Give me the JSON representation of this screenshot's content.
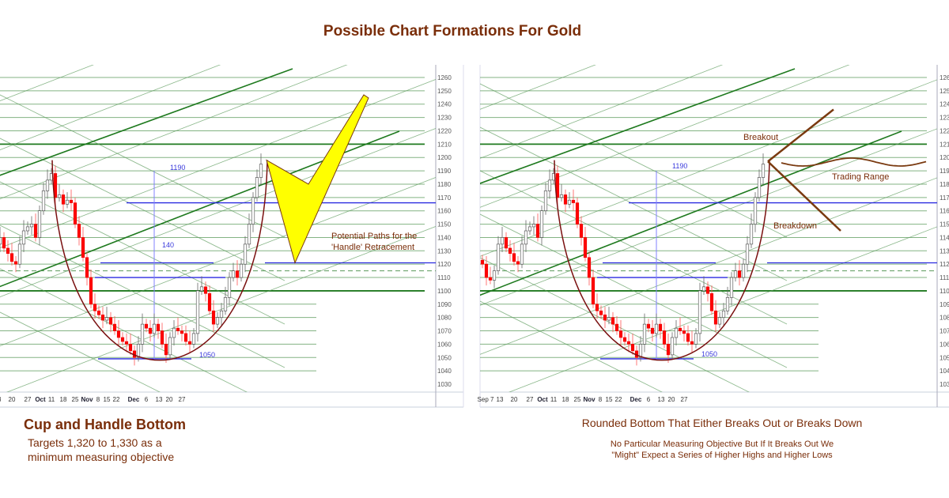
{
  "title": "Possible Chart Formations For Gold",
  "left_panel": {
    "caption": "Cup and Handle Bottom",
    "sub_lines": [
      "Targets 1,320 to 1,330 as a",
      "minimum measuring objective"
    ],
    "annotation_lines": [
      "Potential Paths for the",
      "'Handle' Retracement"
    ],
    "measure_top": "1190",
    "measure_mid": "140",
    "measure_bottom": "1050"
  },
  "right_panel": {
    "caption": "Rounded Bottom That Either Breaks Out or Breaks Down",
    "sub_lines": [
      "No Particular Measuring Objective But If It Breaks Out We",
      "\"Might\" Expect a Series of Higher Highs and Higher Lows"
    ],
    "breakout": "Breakout",
    "breakdown": "Breakdown",
    "trading_range": "Trading Range",
    "measure_top": "1190",
    "measure_bottom": "1050"
  },
  "colors": {
    "title": "#7a2e0a",
    "up_candle": "#ffffff",
    "down_candle": "#ff0000",
    "grid_green": "#5a9a5a",
    "level_blue": "#2a2ae0",
    "cup_curve": "#7a1010",
    "handle_arrow": "#ffff00",
    "scenario_lines": "#7a3a10"
  },
  "chart_data": {
    "type": "candlestick",
    "ylim": [
      1030,
      1260
    ],
    "y_ticks": [
      1030,
      1040,
      1050,
      1060,
      1070,
      1080,
      1090,
      1100,
      1110,
      1120,
      1130,
      1140,
      1150,
      1160,
      1170,
      1180,
      1190,
      1200,
      1210,
      1220,
      1230,
      1240,
      1250,
      1260
    ],
    "x_tick_labels": [
      {
        "label": "Sep 7",
        "bold": false
      },
      {
        "label": "13",
        "bold": false
      },
      {
        "label": "20",
        "bold": false
      },
      {
        "label": "27",
        "bold": false
      },
      {
        "label": "Oct",
        "bold": true
      },
      {
        "label": "11",
        "bold": false
      },
      {
        "label": "18",
        "bold": false
      },
      {
        "label": "25",
        "bold": false
      },
      {
        "label": "Nov",
        "bold": true
      },
      {
        "label": "8",
        "bold": false
      },
      {
        "label": "15",
        "bold": false
      },
      {
        "label": "22",
        "bold": false
      },
      {
        "label": "Dec",
        "bold": true
      },
      {
        "label": "6",
        "bold": false
      },
      {
        "label": "13",
        "bold": false
      },
      {
        "label": "20",
        "bold": false
      },
      {
        "label": "27",
        "bold": false
      }
    ],
    "closes": [
      1120,
      1110,
      1108,
      1115,
      1135,
      1140,
      1132,
      1128,
      1122,
      1120,
      1135,
      1145,
      1148,
      1150,
      1140,
      1160,
      1175,
      1183,
      1188,
      1170,
      1172,
      1165,
      1168,
      1166,
      1150,
      1140,
      1125,
      1110,
      1090,
      1085,
      1082,
      1078,
      1080,
      1075,
      1070,
      1065,
      1062,
      1060,
      1055,
      1050,
      1060,
      1075,
      1072,
      1068,
      1075,
      1070,
      1060,
      1052,
      1065,
      1072,
      1070,
      1068,
      1062,
      1060,
      1068,
      1100,
      1103,
      1098,
      1085,
      1075,
      1080,
      1085,
      1095,
      1110,
      1115,
      1110,
      1120,
      1135,
      1150,
      1170,
      1185,
      1195
    ],
    "blue_levels": [
      1166,
      1121,
      1110,
      1049
    ],
    "dashed_level": 1115,
    "cup": {
      "left_rim": 1198,
      "bottom": 1049,
      "right_rim": 1198
    },
    "handle_path_prices": [
      1198,
      1180,
      1247,
      1121
    ],
    "breakout_target": 1236,
    "breakdown_target": 1145
  }
}
